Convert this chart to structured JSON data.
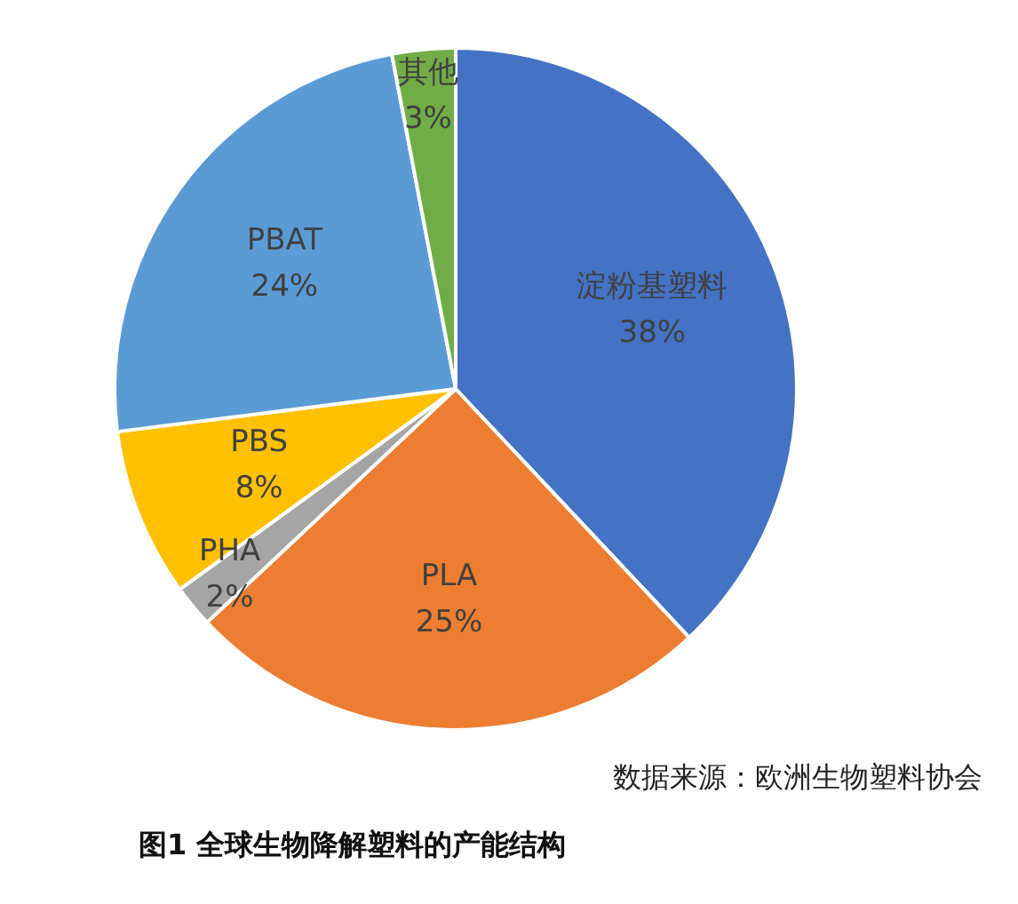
{
  "chart_data": {
    "type": "pie",
    "title": "图1 全球生物降解塑料的产能结构",
    "categories": [
      "淀粉基塑料",
      "PLA",
      "PHA",
      "PBS",
      "PBAT",
      "其他"
    ],
    "values": [
      38,
      25,
      2,
      8,
      24,
      3
    ],
    "value_labels": [
      "38%",
      "25%",
      "2%",
      "8%",
      "24%",
      "3%"
    ],
    "colors": [
      "#4472c4",
      "#ed7d31",
      "#a5a5a5",
      "#ffc000",
      "#5b9bd5",
      "#70ad47"
    ],
    "legend": false,
    "annotations": [
      "数据来源：欧洲生物塑料协会"
    ]
  }
}
